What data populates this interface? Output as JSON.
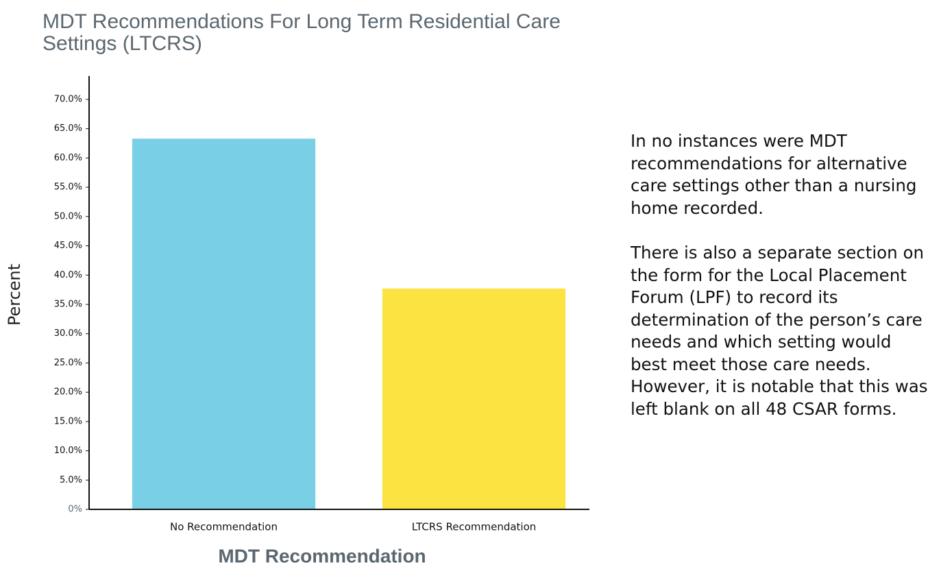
{
  "chart_data": {
    "type": "bar",
    "title": "MDT Recommendations For Long Term Residential Care Settings (LTCRS)",
    "categories": [
      "No Recommendation",
      "LTCRS Recommendation"
    ],
    "values": [
      63.3,
      37.7
    ],
    "colors": [
      "#78cfe6",
      "#fde342"
    ],
    "ylabel": "Percent",
    "xlabel": "MDT Recommendation",
    "ylim": [
      0,
      74
    ],
    "yticks": [
      {
        "value": 0,
        "label": "0%"
      },
      {
        "value": 5,
        "label": "5.0%"
      },
      {
        "value": 10,
        "label": "10.0%"
      },
      {
        "value": 15,
        "label": "15.0%"
      },
      {
        "value": 20,
        "label": "20.0%"
      },
      {
        "value": 25,
        "label": "25.0%"
      },
      {
        "value": 30,
        "label": "30.0%"
      },
      {
        "value": 35,
        "label": "35.0%"
      },
      {
        "value": 40,
        "label": "40.0%"
      },
      {
        "value": 45,
        "label": "45.0%"
      },
      {
        "value": 50,
        "label": "50.0%"
      },
      {
        "value": 55,
        "label": "55.0%"
      },
      {
        "value": 60,
        "label": "60.0%"
      },
      {
        "value": 65,
        "label": "65.0%"
      },
      {
        "value": 70,
        "label": "70.0%"
      }
    ],
    "grid": false
  },
  "notes": {
    "paragraphs": [
      "In no instances were MDT recommendations for alternative care settings other than a nursing home recorded.",
      "There is also a separate section on the form for the Local Placement Forum (LPF) to record its determination of the person’s care needs and which setting would best meet those care needs. However, it is notable that this was left blank on all 48 CSAR forms."
    ]
  }
}
